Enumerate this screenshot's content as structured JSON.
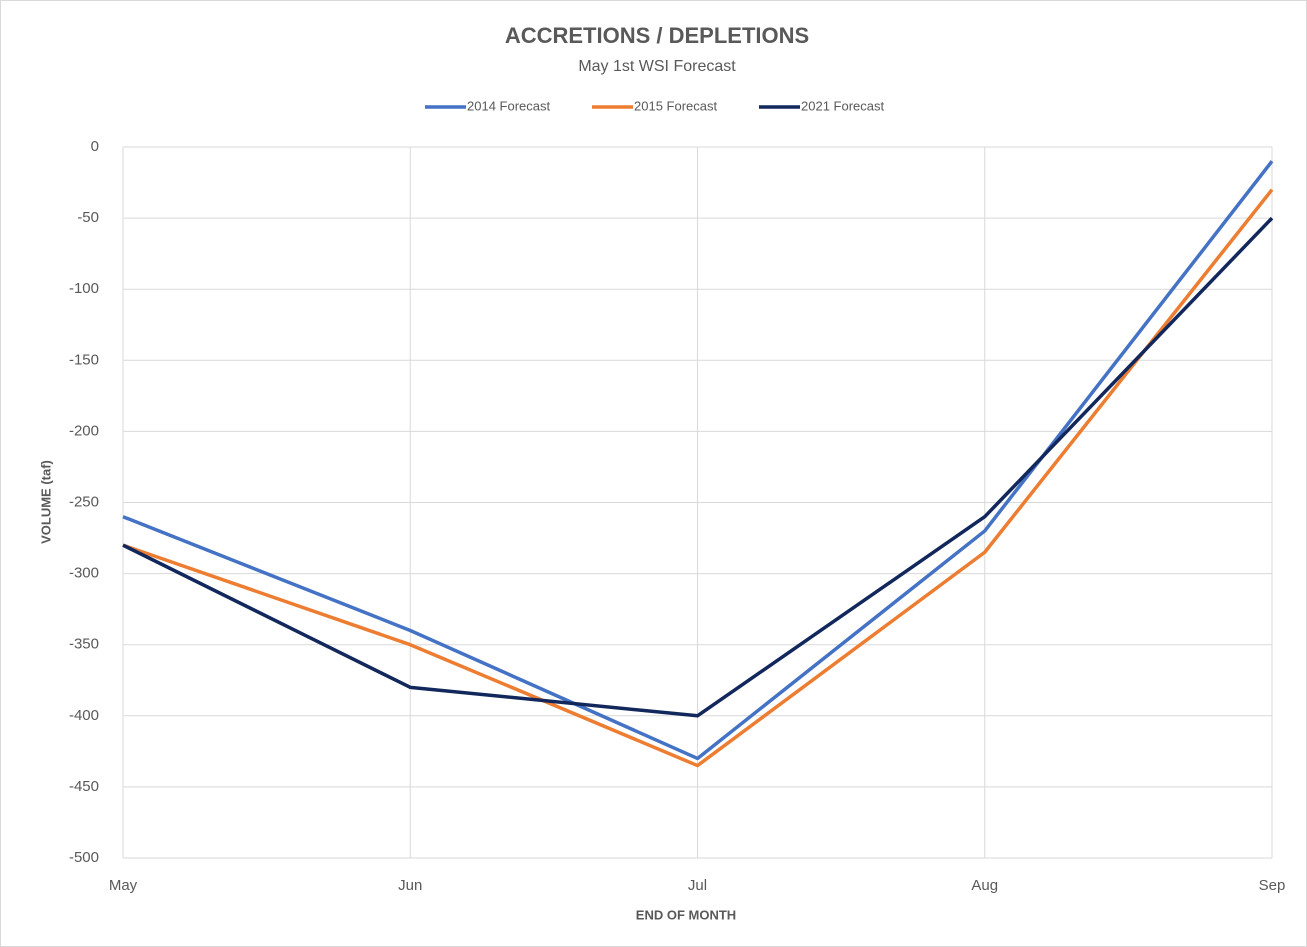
{
  "chart_data": {
    "type": "line",
    "title": "ACCRETIONS / DEPLETIONS",
    "subtitle": "May 1st WSI Forecast",
    "x_label": "END OF MONTH",
    "y_label": "VOLUME (taf)",
    "categories": [
      "May",
      "Jun",
      "Jul",
      "Aug",
      "Sep"
    ],
    "series": [
      {
        "name": "2014 Forecast",
        "color": "#4472c4",
        "values": [
          -260,
          -340,
          -430,
          -270,
          -10
        ]
      },
      {
        "name": "2015 Forecast",
        "color": "#ed7d31",
        "values": [
          -280,
          -350,
          -435,
          -285,
          -30
        ]
      },
      {
        "name": "2021 Forecast",
        "color": "#12285c",
        "values": [
          -280,
          -380,
          -400,
          -260,
          -50
        ]
      }
    ],
    "ylim": [
      -500,
      0
    ],
    "yticks": [
      0,
      -50,
      -100,
      -150,
      -200,
      -250,
      -300,
      -350,
      -400,
      -450,
      -500
    ],
    "grid": true,
    "legend": "top"
  }
}
